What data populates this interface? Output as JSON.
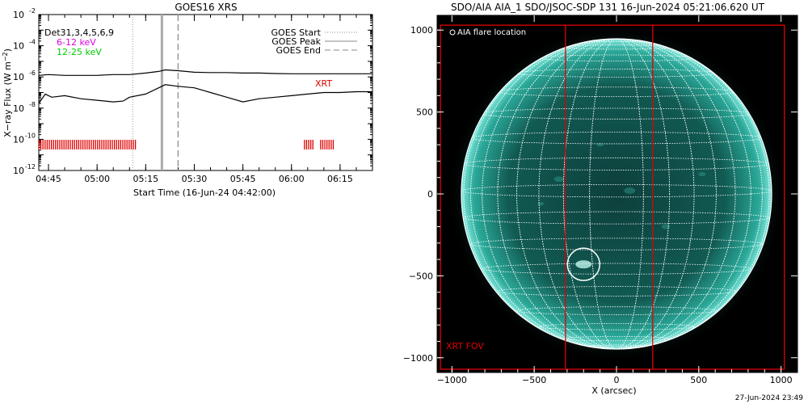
{
  "chart_data": [
    {
      "type": "line",
      "title": "GOES16 XRS",
      "xlabel": "Start Time (16-Jun-24 04:42:00)",
      "ylabel": "X-ray Flux (W m-2)",
      "y_scale": "log",
      "ylim_exponents": [
        -12,
        -2
      ],
      "xlim_minutes": [
        "04:42",
        "06:25"
      ],
      "x_tick_labels": [
        "04:45",
        "05:00",
        "05:15",
        "05:30",
        "05:45",
        "06:00",
        "06:15"
      ],
      "y_tick_labels": [
        "10",
        "10",
        "10",
        "10",
        "10",
        "10"
      ],
      "y_tick_exponents": [
        "-12",
        "-10",
        "-8",
        "-6",
        "-4",
        "-2"
      ],
      "annotations": {
        "det_label": "Det31,3,4,5,6,9",
        "band_low": "6-12 keV",
        "band_high": "12-25 keV",
        "xrt_label": "XRT"
      },
      "legend": {
        "placement": "top-right",
        "entries": [
          "GOES Start",
          "GOES Peak",
          "GOES End"
        ]
      },
      "event_times": {
        "goes_start": "05:11",
        "goes_peak": "05:21",
        "goes_end": "05:25",
        "highlight": "05:20"
      },
      "series": [
        {
          "band": "long",
          "x": [
            "04:42",
            "04:45",
            "04:50",
            "04:55",
            "05:00",
            "05:05",
            "05:10",
            "05:15",
            "05:19",
            "05:21",
            "05:25",
            "05:30",
            "05:35",
            "05:40",
            "05:45",
            "05:50",
            "05:55",
            "06:00",
            "06:05",
            "06:10",
            "06:15",
            "06:20",
            "06:25"
          ],
          "log_values": [
            -5.9,
            -5.85,
            -5.9,
            -5.9,
            -5.9,
            -5.85,
            -5.85,
            -5.75,
            -5.65,
            -5.55,
            -5.6,
            -5.7,
            -5.72,
            -5.72,
            -5.75,
            -5.75,
            -5.78,
            -5.8,
            -5.8,
            -5.8,
            -5.8,
            -5.8,
            -5.8
          ]
        },
        {
          "band": "short",
          "x": [
            "04:42",
            "04:44",
            "04:46",
            "04:50",
            "04:55",
            "05:00",
            "05:05",
            "05:08",
            "05:10",
            "05:15",
            "05:19",
            "05:21",
            "05:25",
            "05:30",
            "05:35",
            "05:40",
            "05:45",
            "05:50",
            "05:55",
            "06:00",
            "06:05",
            "06:10",
            "06:15",
            "06:20",
            "06:25"
          ],
          "log_values": [
            -7.7,
            -7.1,
            -7.3,
            -7.2,
            -7.4,
            -7.5,
            -7.6,
            -7.55,
            -7.3,
            -7.1,
            -6.7,
            -6.5,
            -6.6,
            -6.7,
            -7.0,
            -7.3,
            -7.6,
            -7.4,
            -7.3,
            -7.2,
            -7.1,
            -7.0,
            -7.0,
            -6.95,
            -6.95
          ]
        }
      ],
      "xrt_segments": [
        [
          "04:42",
          "05:12"
        ],
        [
          "06:04",
          "06:07"
        ],
        [
          "06:09",
          "06:13"
        ]
      ]
    },
    {
      "type": "scatter",
      "title": "SDO/AIA AIA_1 SDO/JSOC-SDP 131 16-Jun-2024 05:21:06.620 UT",
      "xlabel": "X (arcsec)",
      "ylabel": "",
      "xlim": [
        -1090,
        1100
      ],
      "ylim": [
        -1090,
        1090
      ],
      "x_tick_labels": [
        "-1000",
        "-500",
        "0",
        "500",
        "1000"
      ],
      "y_tick_labels": [
        "1000",
        "500",
        "0",
        "-500",
        "-1000"
      ],
      "legend_text": "AIA flare location",
      "fov_label": "XRT FOV",
      "flare_location": {
        "x": -200,
        "y": -430
      },
      "solar_radius_arcsec": 945,
      "fov_box": {
        "xmin": -1070,
        "xmax": 1020,
        "ymin": -1070,
        "ymax": 1030
      },
      "fov_inner_x": [
        -310,
        220
      ],
      "timestamp": "27-Jun-2024 23:49"
    }
  ]
}
